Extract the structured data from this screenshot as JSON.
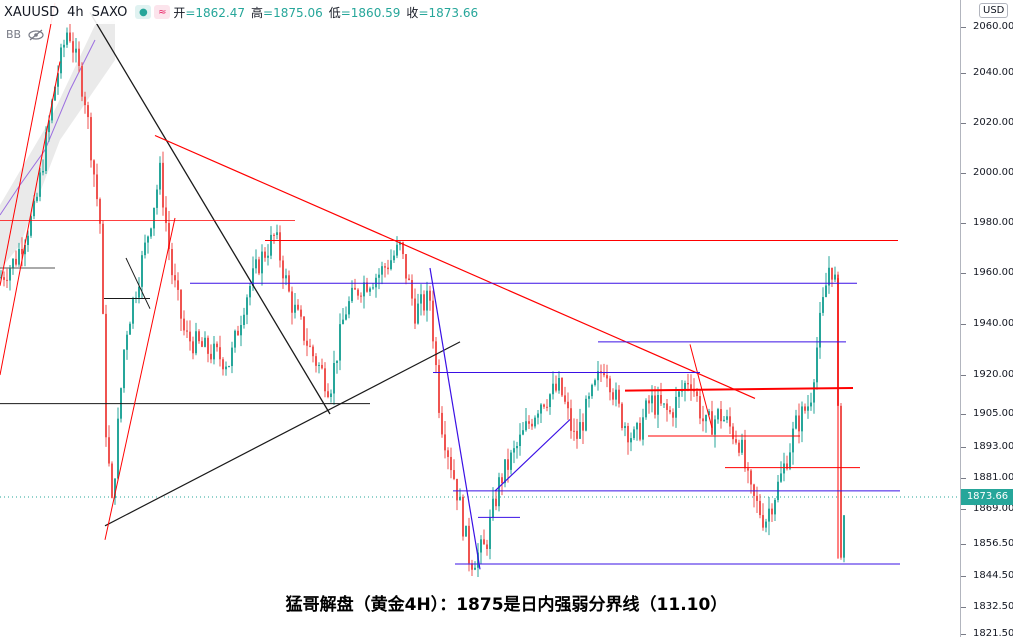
{
  "header": {
    "symbol": "XAUUSD",
    "interval": "4h",
    "exchange": "SAXO",
    "open_label": "开",
    "open": "=1862.47",
    "high_label": "高",
    "high": "=1875.06",
    "low_label": "低",
    "low": "=1860.59",
    "close_label": "收",
    "close": "=1873.66",
    "indicator": "BB"
  },
  "axis": {
    "currency": "USD",
    "last_price": "1873.66",
    "ticks": [
      "2060.00",
      "2040.00",
      "2020.00",
      "2000.00",
      "1980.00",
      "1960.00",
      "1940.00",
      "1920.00",
      "1905.00",
      "1893.00",
      "1881.00",
      "1869.00",
      "1856.50",
      "1844.50",
      "1832.50",
      "1821.50"
    ]
  },
  "caption": "猛哥解盘（黄金4H）：1875是日内强弱分界线（11.10）",
  "colors": {
    "up": "#26a69a",
    "down": "#ef5350",
    "red_line": "#ff0000",
    "blue_line": "#3a10e5",
    "black_line": "#1a1a1a",
    "bb_fill": "#d8d8d8"
  },
  "chart_data": {
    "type": "candlestick",
    "symbol": "XAUUSD",
    "interval": "4h",
    "y_axis_ticks": [
      2060,
      2040,
      2020,
      2000,
      1980,
      1960,
      1940,
      1920,
      1905,
      1893,
      1881,
      1869,
      1856.5,
      1844.5,
      1832.5,
      1821.5
    ],
    "last": {
      "open": 1862.47,
      "high": 1875.06,
      "low": 1860.59,
      "close": 1873.66
    },
    "key_levels": [
      1973,
      1956,
      1933,
      1921,
      1914,
      1897,
      1885,
      1875,
      1849
    ]
  }
}
